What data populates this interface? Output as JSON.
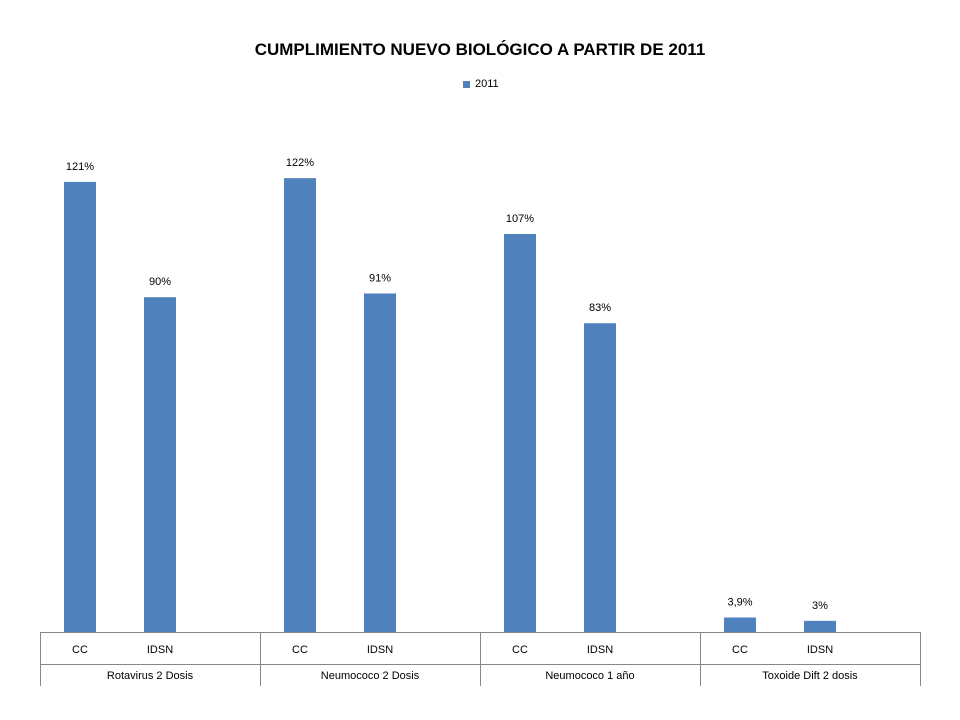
{
  "chart_data": {
    "type": "bar",
    "title": "CUMPLIMIENTO NUEVO BIOLÓGICO A PARTIR DE 2011",
    "xlabel": "",
    "ylabel": "",
    "legend_position": "top-center",
    "grid": false,
    "groups": [
      {
        "label": "Rotavirus 2 Dosis",
        "categories": [
          "CC",
          "IDSN"
        ]
      },
      {
        "label": "Neumococo 2 Dosis",
        "categories": [
          "CC",
          "IDSN"
        ]
      },
      {
        "label": "Neumococo 1 año",
        "categories": [
          "CC",
          "IDSN"
        ]
      },
      {
        "label": "Toxoide Dift 2 dosis",
        "categories": [
          "CC",
          "IDSN"
        ]
      }
    ],
    "series": [
      {
        "name": "2011",
        "color": "#4F81BD",
        "values": [
          121,
          90,
          122,
          91,
          107,
          83,
          3.9,
          3
        ],
        "data_labels": [
          "121%",
          "90%",
          "122%",
          "91%",
          "107%",
          "83%",
          "3,9%",
          "3%"
        ]
      }
    ],
    "ylim": [
      0,
      130
    ]
  }
}
